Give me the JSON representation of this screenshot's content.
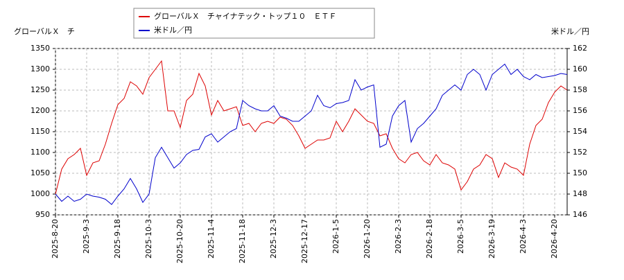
{
  "chart_data": {
    "type": "line",
    "ylabel": "グローバルＸ　チ",
    "y2label": "米ドル／円",
    "categories": [
      "2025-8-20",
      null,
      null,
      null,
      null,
      "2025-9-3",
      null,
      null,
      null,
      null,
      "2025-9-18",
      null,
      null,
      null,
      null,
      "2025-10-3",
      null,
      null,
      null,
      null,
      "2025-10-20",
      null,
      null,
      null,
      null,
      "2025-11-4",
      null,
      null,
      null,
      null,
      "2025-11-18",
      null,
      null,
      null,
      null,
      "2025-12-3",
      null,
      null,
      null,
      null,
      "2025-12-17",
      null,
      null,
      null,
      null,
      "2026-1-5",
      null,
      null,
      null,
      null,
      "2026-1-20",
      null,
      null,
      null,
      null,
      "2026-2-3",
      null,
      null,
      null,
      null,
      "2026-2-18",
      null,
      null,
      null,
      null,
      "2026-3-5",
      null,
      null,
      null,
      null,
      "2026-3-19",
      null,
      null,
      null,
      null,
      "2026-4-3",
      null,
      null,
      null,
      null,
      "2026-4-20",
      null,
      null
    ],
    "series": [
      {
        "name": "グローバルＸ　チャイナテック・トップ１０　ＥＴＦ",
        "color": "#dd0000",
        "values": [
          1000,
          1060,
          1085,
          1095,
          1110,
          1045,
          1075,
          1080,
          1120,
          1170,
          1215,
          1230,
          1270,
          1260,
          1240,
          1280,
          1300,
          1320,
          1200,
          1200,
          1160,
          1225,
          1240,
          1290,
          1260,
          1190,
          1225,
          1200,
          1205,
          1210,
          1165,
          1170,
          1150,
          1170,
          1175,
          1170,
          1185,
          1180,
          1165,
          1140,
          1110,
          1120,
          1130,
          1130,
          1135,
          1175,
          1150,
          1175,
          1205,
          1190,
          1175,
          1170,
          1140,
          1145,
          1110,
          1085,
          1075,
          1095,
          1100,
          1080,
          1070,
          1095,
          1075,
          1070,
          1060,
          1010,
          1030,
          1060,
          1070,
          1095,
          1085,
          1040,
          1075,
          1065,
          1060,
          1045,
          1120,
          1165,
          1180,
          1220,
          1245,
          1260,
          1250
        ]
      },
      {
        "name": "米ドル／円",
        "color": "#0000cc",
        "axis": "y2",
        "values": [
          148,
          147.3,
          147.8,
          147.3,
          147.5,
          148,
          147.8,
          147.7,
          147.5,
          147,
          147.8,
          148.5,
          149.5,
          148.5,
          147.2,
          148,
          151.5,
          152.5,
          151.5,
          150.5,
          151,
          151.8,
          152.2,
          152.3,
          153.5,
          153.8,
          153,
          153.5,
          154,
          154.3,
          157,
          156.5,
          156.2,
          156,
          156,
          156.5,
          155.5,
          155.3,
          155,
          155,
          155.5,
          156,
          157.5,
          156.5,
          156.3,
          156.7,
          156.8,
          157,
          159,
          158,
          158.3,
          158.5,
          152.5,
          152.8,
          155.5,
          156.5,
          157,
          153,
          154.3,
          154.8,
          155.5,
          156.2,
          157.5,
          158,
          158.5,
          158,
          159.5,
          160,
          159.5,
          158,
          159.5,
          160,
          160.5,
          159.5,
          160,
          159.3,
          159,
          159.5,
          159.2,
          159.3,
          159.4,
          159.6,
          159.5
        ]
      }
    ],
    "ylim": [
      950,
      1350
    ],
    "yticks": [
      950,
      1000,
      1050,
      1100,
      1150,
      1200,
      1250,
      1300,
      1350
    ],
    "y2lim": [
      146,
      162
    ],
    "y2ticks": [
      146,
      148,
      150,
      152,
      154,
      156,
      158,
      160,
      162
    ],
    "grid": true
  }
}
